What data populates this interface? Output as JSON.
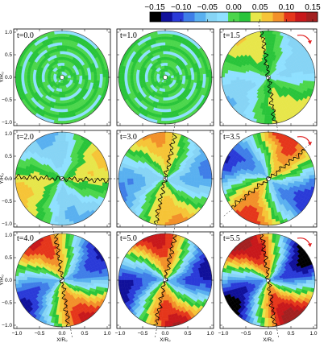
{
  "colorbar": {
    "ticks": [
      "−0.15",
      "−0.10",
      "−0.05",
      "0.00",
      "0.05",
      "0.10",
      "0.15"
    ],
    "colors": [
      "#000000",
      "#10109a",
      "#2a3ad8",
      "#3f7ee8",
      "#59b0f0",
      "#86d4f5",
      "#8fe0ff",
      "#4cd64c",
      "#29c43a",
      "#e7e64a",
      "#f6c437",
      "#f2902a",
      "#e5361b",
      "#c8181b",
      "#a32020"
    ]
  },
  "axes": {
    "ylabel": "Y/R₀",
    "xlabel": "X/R₀",
    "yticks": [
      "1.0",
      "0.5",
      "0.0",
      "−0.5",
      "−1.0"
    ],
    "xticks": [
      "−1.0",
      "−0.5",
      "0.0",
      "0.5",
      "1.0"
    ]
  },
  "chart_data": {
    "type": "heatmap",
    "layout": "3x3 grid of disk maps",
    "xlim": [
      -1,
      1
    ],
    "ylim": [
      -1,
      1
    ],
    "color_range": [
      -0.15,
      0.15
    ],
    "panels": [
      {
        "label": "t=0.0",
        "arms": 0,
        "amplitude": 0.02,
        "rotation_arrow": false,
        "phase_deg": 0
      },
      {
        "label": "t=1.0",
        "arms": 0,
        "amplitude": 0.02,
        "rotation_arrow": false,
        "phase_deg": 0
      },
      {
        "label": "t=1.5",
        "arms": 2,
        "amplitude": 0.05,
        "rotation_arrow": true,
        "phase_deg": 100
      },
      {
        "label": "t=2.0",
        "arms": 2,
        "amplitude": 0.06,
        "rotation_arrow": false,
        "phase_deg": 0
      },
      {
        "label": "t=3.0",
        "arms": 2,
        "amplitude": 0.08,
        "rotation_arrow": false,
        "phase_deg": 80
      },
      {
        "label": "t=3.5",
        "arms": 2,
        "amplitude": 0.11,
        "rotation_arrow": true,
        "phase_deg": 40
      },
      {
        "label": "t=4.0",
        "arms": 2,
        "amplitude": 0.12,
        "rotation_arrow": false,
        "phase_deg": 100
      },
      {
        "label": "t=5.0",
        "arms": 2,
        "amplitude": 0.13,
        "rotation_arrow": false,
        "phase_deg": 80
      },
      {
        "label": "t=5.5",
        "arms": 2,
        "amplitude": 0.15,
        "rotation_arrow": true,
        "phase_deg": 100
      }
    ]
  }
}
